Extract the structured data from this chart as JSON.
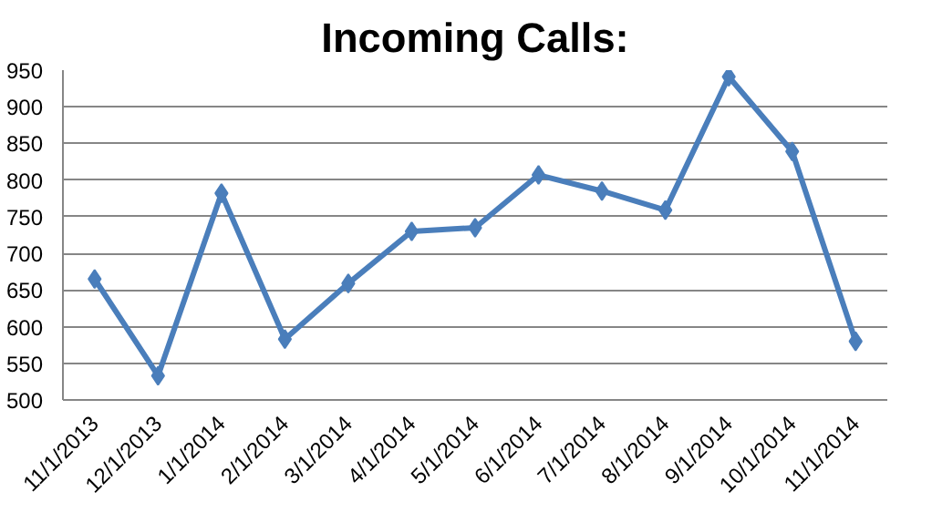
{
  "chart_data": {
    "type": "line",
    "title": "Incoming Calls:",
    "categories": [
      "11/1/2013",
      "12/1/2013",
      "1/1/2014",
      "2/1/2014",
      "3/1/2014",
      "4/1/2014",
      "5/1/2014",
      "6/1/2014",
      "7/1/2014",
      "8/1/2014",
      "9/1/2014",
      "10/1/2014",
      "11/1/2014"
    ],
    "series": [
      {
        "color": "#4a7ebb",
        "values": [
          665,
          533,
          782,
          583,
          659,
          730,
          735,
          807,
          785,
          759,
          941,
          839,
          580
        ]
      }
    ],
    "ylim": [
      500,
      950
    ],
    "yticks": [
      500,
      550,
      600,
      650,
      700,
      750,
      800,
      850,
      900,
      950
    ],
    "grid": "y",
    "marker": "diamond",
    "line_style": "solid"
  }
}
